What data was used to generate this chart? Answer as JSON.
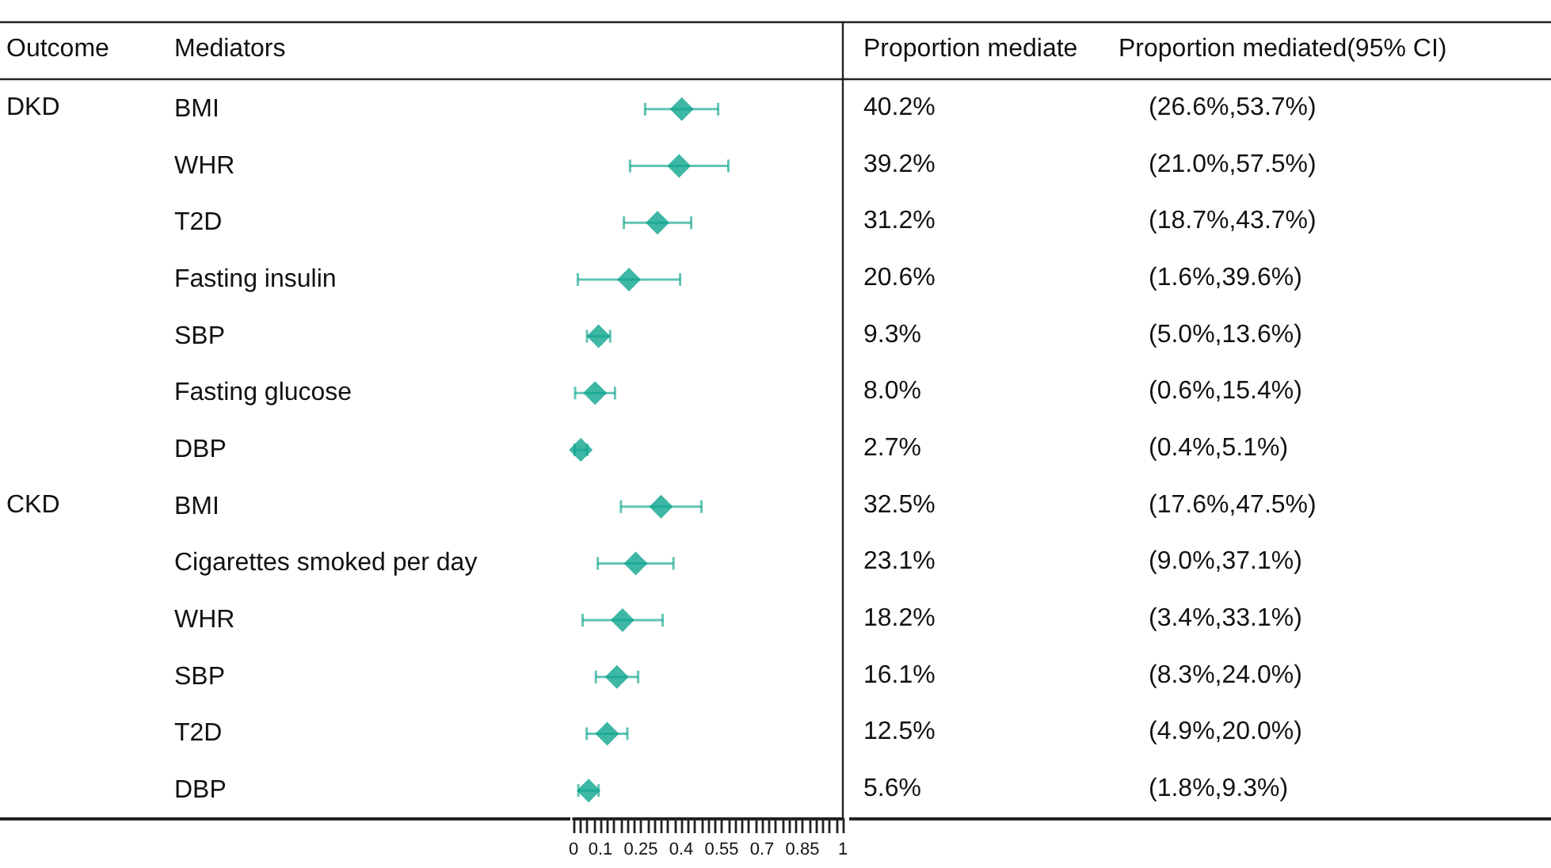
{
  "chart_data": {
    "type": "scatter",
    "orientation": "horizontal",
    "marker": "diamond",
    "categories": [
      "BMI",
      "WHR",
      "T2D",
      "Fasting insulin",
      "SBP",
      "Fasting glucose",
      "DBP",
      "BMI",
      "Cigarettes smoked per day",
      "WHR",
      "SBP",
      "T2D",
      "DBP"
    ],
    "series": [
      {
        "color": "#0ea58e",
        "values": [
          0.402,
          0.392,
          0.312,
          0.206,
          0.093,
          0.08,
          0.027,
          0.325,
          0.231,
          0.182,
          0.161,
          0.125,
          0.056
        ],
        "errors": [
          [
            0.266,
            0.537
          ],
          [
            0.21,
            0.575
          ],
          [
            0.187,
            0.437
          ],
          [
            0.016,
            0.396
          ],
          [
            0.05,
            0.136
          ],
          [
            0.006,
            0.154
          ],
          [
            0.004,
            0.051
          ],
          [
            0.176,
            0.475
          ],
          [
            0.09,
            0.371
          ],
          [
            0.034,
            0.331
          ],
          [
            0.083,
            0.24
          ],
          [
            0.049,
            0.2
          ],
          [
            0.018,
            0.093
          ]
        ]
      }
    ],
    "xlim": [
      0,
      1
    ],
    "xticks": [
      0,
      {
        "value": 0.025,
        "label": null
      },
      {
        "value": 0.05,
        "label": null
      },
      {
        "value": 0.075,
        "label": null
      },
      0.1,
      {
        "value": 0.125,
        "label": null
      },
      {
        "value": 0.15,
        "label": null
      },
      {
        "value": 0.175,
        "label": null
      },
      {
        "value": 0.2,
        "label": null
      },
      {
        "value": 0.225,
        "label": null
      },
      0.25,
      {
        "value": 0.275,
        "label": null
      },
      {
        "value": 0.3,
        "label": null
      },
      {
        "value": 0.325,
        "label": null
      },
      {
        "value": 0.35,
        "label": null
      },
      {
        "value": 0.375,
        "label": null
      },
      0.4,
      {
        "value": 0.425,
        "label": null
      },
      {
        "value": 0.45,
        "label": null
      },
      {
        "value": 0.475,
        "label": null
      },
      {
        "value": 0.5,
        "label": null
      },
      {
        "value": 0.525,
        "label": null
      },
      0.55,
      {
        "value": 0.575,
        "label": null
      },
      {
        "value": 0.6,
        "label": null
      },
      {
        "value": 0.625,
        "label": null
      },
      {
        "value": 0.65,
        "label": null
      },
      {
        "value": 0.675,
        "label": null
      },
      0.7,
      {
        "value": 0.725,
        "label": null
      },
      {
        "value": 0.75,
        "label": null
      },
      {
        "value": 0.775,
        "label": null
      },
      {
        "value": 0.8,
        "label": null
      },
      {
        "value": 0.825,
        "label": null
      },
      0.85,
      {
        "value": 0.875,
        "label": null
      },
      {
        "value": 0.9,
        "label": null
      },
      {
        "value": 0.925,
        "label": null
      },
      {
        "value": 0.95,
        "label": null
      },
      {
        "value": 0.975,
        "label": null
      },
      1
    ],
    "annotations": [
      "Outcome",
      "Mediators",
      "Proportion mediate",
      "Proportion mediated(95% CI)",
      "DKD",
      "CKD",
      "40.2%",
      "39.2%",
      "31.2%",
      "20.6%",
      "9.3%",
      "8.0%",
      "2.7%",
      "32.5%",
      "23.1%",
      "18.2%",
      "16.1%",
      "12.5%",
      "5.6%",
      "(26.6%,53.7%)",
      "(21.0%,57.5%)",
      "(18.7%,43.7%)",
      "(1.6%,39.6%)",
      "(5.0%,13.6%)",
      "(0.6%,15.4%)",
      "(0.4%,5.1%)",
      "(17.6%,47.5%)",
      "(9.0%,37.1%)",
      "(3.4%,33.1%)",
      "(8.3%,24.0%)",
      "(4.9%,20.0%)",
      "(1.8%,9.3%)"
    ]
  }
}
